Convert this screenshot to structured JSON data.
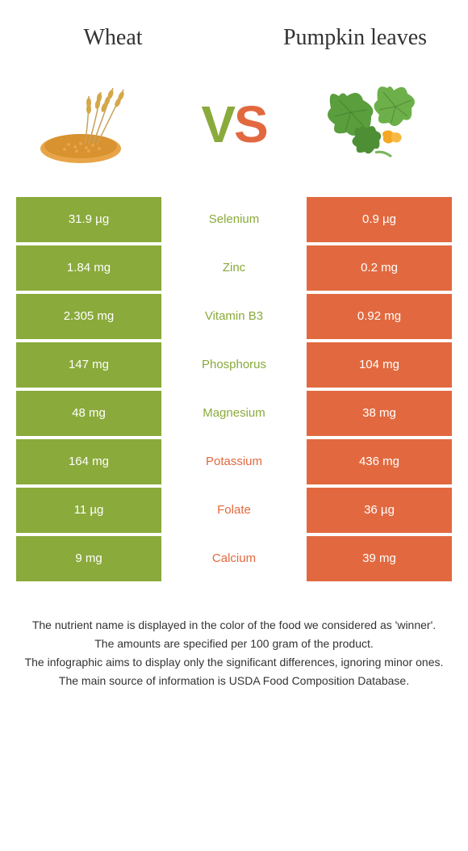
{
  "header": {
    "left_title": "Wheat",
    "right_title": "Pumpkin leaves",
    "vs_v": "V",
    "vs_s": "S"
  },
  "colors": {
    "left": "#8aaa3b",
    "right": "#e2693f",
    "text": "#333333",
    "bg": "#ffffff"
  },
  "table": {
    "rows": [
      {
        "left": "31.9 µg",
        "label": "Selenium",
        "right": "0.9 µg",
        "winner": "left"
      },
      {
        "left": "1.84 mg",
        "label": "Zinc",
        "right": "0.2 mg",
        "winner": "left"
      },
      {
        "left": "2.305 mg",
        "label": "Vitamin B3",
        "right": "0.92 mg",
        "winner": "left"
      },
      {
        "left": "147 mg",
        "label": "Phosphorus",
        "right": "104 mg",
        "winner": "left"
      },
      {
        "left": "48 mg",
        "label": "Magnesium",
        "right": "38 mg",
        "winner": "left"
      },
      {
        "left": "164 mg",
        "label": "Potassium",
        "right": "436 mg",
        "winner": "right"
      },
      {
        "left": "11 µg",
        "label": "Folate",
        "right": "36 µg",
        "winner": "right"
      },
      {
        "left": "9 mg",
        "label": "Calcium",
        "right": "39 mg",
        "winner": "right"
      }
    ]
  },
  "footer": {
    "line1": "The nutrient name is displayed in the color of the food we considered as 'winner'.",
    "line2": "The amounts are specified per 100 gram of the product.",
    "line3": "The infographic aims to display only the significant differences, ignoring minor ones.",
    "line4": "The main source of information is USDA Food Composition Database."
  }
}
